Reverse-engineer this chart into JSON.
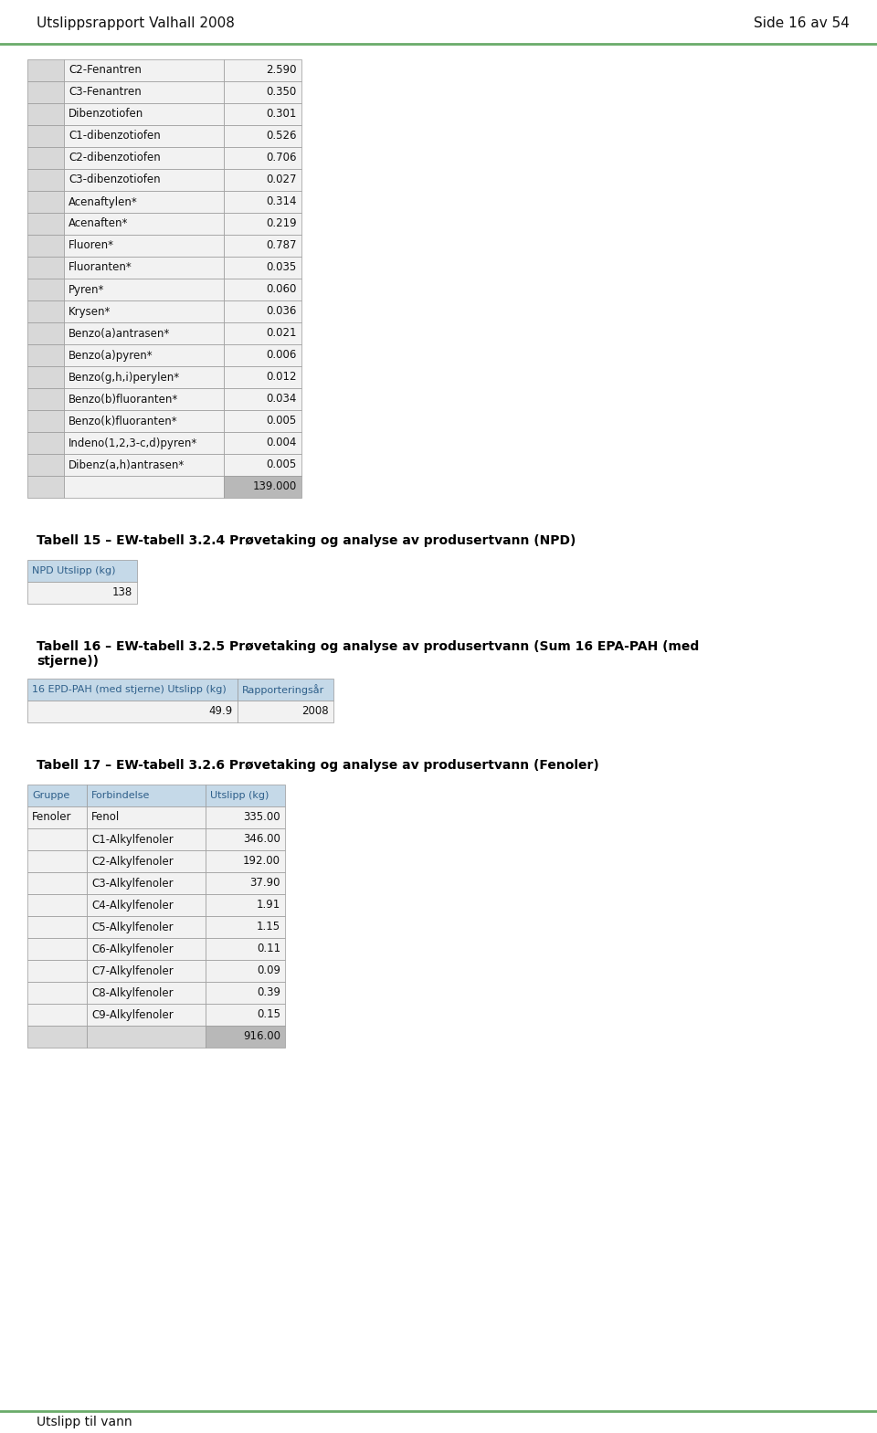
{
  "header_left": "Utslippsrapport Valhall 2008",
  "header_right": "Side 16 av 54",
  "header_line_color": "#6aab6a",
  "footer_text": "Utslipp til vann",
  "footer_line_color": "#6aab6a",
  "table1_rows": [
    [
      "C2-Fenantren",
      "2.590"
    ],
    [
      "C3-Fenantren",
      "0.350"
    ],
    [
      "Dibenzotiofen",
      "0.301"
    ],
    [
      "C1-dibenzotiofen",
      "0.526"
    ],
    [
      "C2-dibenzotiofen",
      "0.706"
    ],
    [
      "C3-dibenzotiofen",
      "0.027"
    ],
    [
      "Acenaftylen*",
      "0.314"
    ],
    [
      "Acenaften*",
      "0.219"
    ],
    [
      "Fluoren*",
      "0.787"
    ],
    [
      "Fluoranten*",
      "0.035"
    ],
    [
      "Pyren*",
      "0.060"
    ],
    [
      "Krysen*",
      "0.036"
    ],
    [
      "Benzo(a)antrasen*",
      "0.021"
    ],
    [
      "Benzo(a)pyren*",
      "0.006"
    ],
    [
      "Benzo(g,h,i)perylen*",
      "0.012"
    ],
    [
      "Benzo(b)fluoranten*",
      "0.034"
    ],
    [
      "Benzo(k)fluoranten*",
      "0.005"
    ],
    [
      "Indeno(1,2,3-c,d)pyren*",
      "0.004"
    ],
    [
      "Dibenz(a,h)antrasen*",
      "0.005"
    ]
  ],
  "table1_total": "139.000",
  "section2_title": "Tabell 15 – EW-tabell 3.2.4 Prøvetaking og analyse av produsertvann (NPD)",
  "table2_header": "NPD Utslipp (kg)",
  "table2_value": "138",
  "section3_title_line1": "Tabell 16 – EW-tabell 3.2.5 Prøvetaking og analyse av produsertvann (Sum 16 EPA-PAH (med",
  "section3_title_line2": "stjerne))",
  "table3_headers": [
    "16 EPD-PAH (med stjerne) Utslipp (kg)",
    "Rapporteringsår"
  ],
  "table3_values": [
    "49.9",
    "2008"
  ],
  "section4_title": "Tabell 17 – EW-tabell 3.2.6 Prøvetaking og analyse av produsertvann (Fenoler)",
  "table4_headers": [
    "Gruppe",
    "Forbindelse",
    "Utslipp (kg)"
  ],
  "table4_rows": [
    [
      "Fenoler",
      "Fenol",
      "335.00"
    ],
    [
      "",
      "C1-Alkylfenoler",
      "346.00"
    ],
    [
      "",
      "C2-Alkylfenoler",
      "192.00"
    ],
    [
      "",
      "C3-Alkylfenoler",
      "37.90"
    ],
    [
      "",
      "C4-Alkylfenoler",
      "1.91"
    ],
    [
      "",
      "C5-Alkylfenoler",
      "1.15"
    ],
    [
      "",
      "C6-Alkylfenoler",
      "0.11"
    ],
    [
      "",
      "C7-Alkylfenoler",
      "0.09"
    ],
    [
      "",
      "C8-Alkylfenoler",
      "0.39"
    ],
    [
      "",
      "C9-Alkylfenoler",
      "0.15"
    ]
  ],
  "table4_total": "916.00",
  "bg_color": "#ffffff",
  "table_border_color": "#999999",
  "table_header_bg": "#c5d9e8",
  "table_header_text": "#2e5f8a",
  "table_data_bg": "#f2f2f2",
  "table_total_bg": "#b8b8b8",
  "table_empty_bg": "#d8d8d8",
  "table_text_color": "#111111",
  "section_title_color": "#000000",
  "header_fontsize": 11,
  "title_fontsize": 10,
  "table_fontsize": 8.5,
  "cell_fontsize": 8.5
}
